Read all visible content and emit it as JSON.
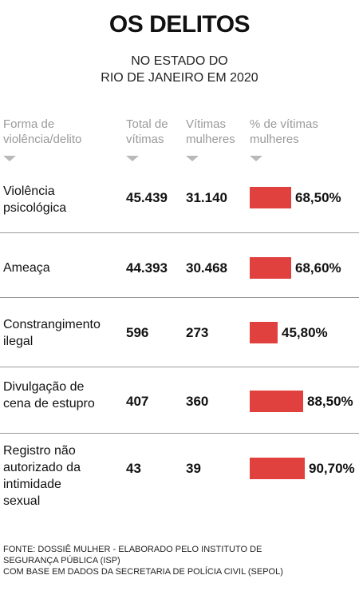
{
  "title": "OS DELITOS",
  "subtitle": [
    "NO ESTADO DO",
    "RIO DE JANEIRO EM 2020"
  ],
  "headers": {
    "crime": [
      "Forma de",
      "violência/delito"
    ],
    "total": [
      "Total de",
      "vítimas"
    ],
    "women": [
      "Vítimas",
      "mulheres"
    ],
    "pct": [
      "% de vítimas",
      "mulheres"
    ]
  },
  "chart_data": {
    "type": "bar",
    "title": "OS DELITOS",
    "categories": [
      "Violência psicológica",
      "Ameaça",
      "Constrangimento ilegal",
      "Divulgação de cena de estupro",
      "Registro não autorizado da intimidade sexual"
    ],
    "series": [
      {
        "name": "Total de vítimas",
        "values": [
          45439,
          44393,
          596,
          407,
          43
        ]
      },
      {
        "name": "Vítimas mulheres",
        "values": [
          31140,
          30468,
          273,
          360,
          39
        ]
      },
      {
        "name": "% de vítimas mulheres",
        "values": [
          68.5,
          68.6,
          45.8,
          88.5,
          90.7
        ]
      }
    ]
  },
  "rows": [
    {
      "label": [
        "Violência",
        "psicológica"
      ],
      "total": "45.439",
      "women": "31.140",
      "pct_value": 68.5,
      "pct": "68,50%"
    },
    {
      "label": [
        "Ameaça"
      ],
      "total": "44.393",
      "women": "30.468",
      "pct_value": 68.6,
      "pct": "68,60%"
    },
    {
      "label": [
        "Constrangimento",
        "ilegal"
      ],
      "total": "596",
      "women": "273",
      "pct_value": 45.8,
      "pct": "45,80%"
    },
    {
      "label": [
        "Divulgação de",
        "cena de estupro"
      ],
      "total": "407",
      "women": "360",
      "pct_value": 88.5,
      "pct": "88,50%"
    },
    {
      "label": [
        "Registro não",
        "autorizado da",
        "intimidade",
        "sexual"
      ],
      "total": "43",
      "women": "39",
      "pct_value": 90.7,
      "pct": "90,70%"
    }
  ],
  "source": [
    "FONTE: DOSSIÊ MULHER - ELABORADO PELO INSTITUTO DE",
    "SEGURANÇA PÚBLICA (ISP)",
    "COM BASE EM DADOS DA SECRETARIA DE POLÍCIA CIVIL (SEPOL)"
  ],
  "colors": {
    "bar": "#e0403e",
    "header": "#9a9a9a",
    "divider": "#9a9a9a"
  }
}
